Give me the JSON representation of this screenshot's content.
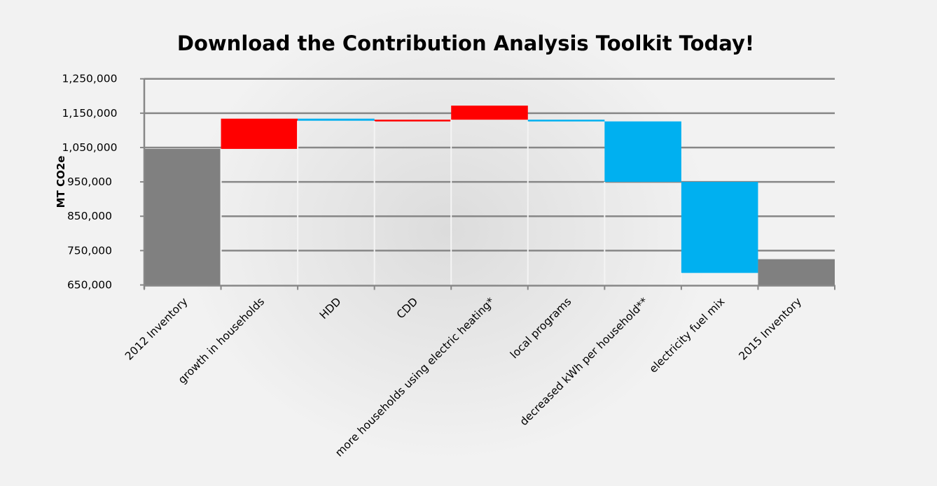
{
  "chart_data": {
    "type": "bar",
    "subtype": "waterfall",
    "title": "Download the Contribution Analysis Toolkit Today!",
    "xlabel": "",
    "ylabel": "MT CO2e",
    "ylim": [
      650000,
      1250000
    ],
    "yticks": [
      "650,000",
      "750,000",
      "850,000",
      "950,000",
      "1,050,000",
      "1,150,000",
      "1,250,000"
    ],
    "ytick_values": [
      650000,
      750000,
      850000,
      950000,
      1050000,
      1150000,
      1250000
    ],
    "grid": true,
    "legend": "none",
    "colors": {
      "total": "#808080",
      "increase": "#ff0000",
      "decrease": "#00b0f0",
      "grid": "#878787"
    },
    "categories": [
      "2012 Inventory",
      "growth in households",
      "HDD",
      "CDD",
      "more households using electric heating*",
      "local programs",
      "decreased kWh per household**",
      "electricity fuel mix",
      "2015 Inventory"
    ],
    "bars": [
      {
        "kind": "total",
        "start": 650000,
        "end": 1046000
      },
      {
        "kind": "increase",
        "start": 1046000,
        "end": 1134000
      },
      {
        "kind": "decrease",
        "start": 1134000,
        "end": 1128000
      },
      {
        "kind": "increase",
        "start": 1127000,
        "end": 1131000
      },
      {
        "kind": "increase",
        "start": 1131000,
        "end": 1172000
      },
      {
        "kind": "decrease",
        "start": 1131000,
        "end": 1126000
      },
      {
        "kind": "decrease",
        "start": 1126000,
        "end": 950000
      },
      {
        "kind": "decrease",
        "start": 950000,
        "end": 685000
      },
      {
        "kind": "total",
        "start": 650000,
        "end": 725000
      }
    ]
  }
}
